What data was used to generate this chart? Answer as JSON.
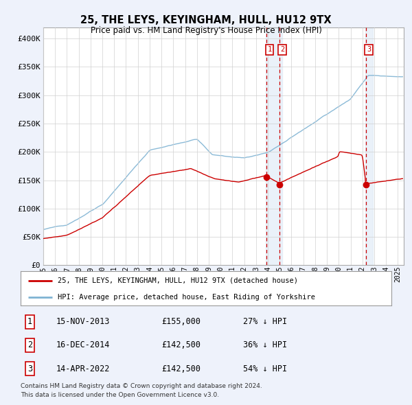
{
  "title": "25, THE LEYS, KEYINGHAM, HULL, HU12 9TX",
  "subtitle": "Price paid vs. HM Land Registry's House Price Index (HPI)",
  "legend_label_red": "25, THE LEYS, KEYINGHAM, HULL, HU12 9TX (detached house)",
  "legend_label_blue": "HPI: Average price, detached house, East Riding of Yorkshire",
  "footnote1": "Contains HM Land Registry data © Crown copyright and database right 2024.",
  "footnote2": "This data is licensed under the Open Government Licence v3.0.",
  "transactions": [
    {
      "num": 1,
      "date": "15-NOV-2013",
      "price": "£155,000",
      "pct": "27% ↓ HPI",
      "year_val": 2013.875
    },
    {
      "num": 2,
      "date": "16-DEC-2014",
      "price": "£142,500",
      "pct": "36% ↓ HPI",
      "year_val": 2014.958
    },
    {
      "num": 3,
      "date": "14-APR-2022",
      "price": "£142,500",
      "pct": "54% ↓ HPI",
      "year_val": 2022.283
    }
  ],
  "vline_color": "#cc0000",
  "vline_style": "--",
  "hpi_color": "#7fb3d3",
  "hpi_color_light": "#c8dff0",
  "price_color": "#cc0000",
  "ylim": [
    0,
    420000
  ],
  "yticks": [
    0,
    50000,
    100000,
    150000,
    200000,
    250000,
    300000,
    350000,
    400000
  ],
  "ytick_labels": [
    "£0",
    "£50K",
    "£100K",
    "£150K",
    "£200K",
    "£250K",
    "£300K",
    "£350K",
    "£400K"
  ],
  "xmin": 1995.0,
  "xmax": 2025.5,
  "background_color": "#eef2fb",
  "plot_bg": "#ffffff",
  "grid_color": "#d0d0d0",
  "shade_color": "#dce8f5"
}
